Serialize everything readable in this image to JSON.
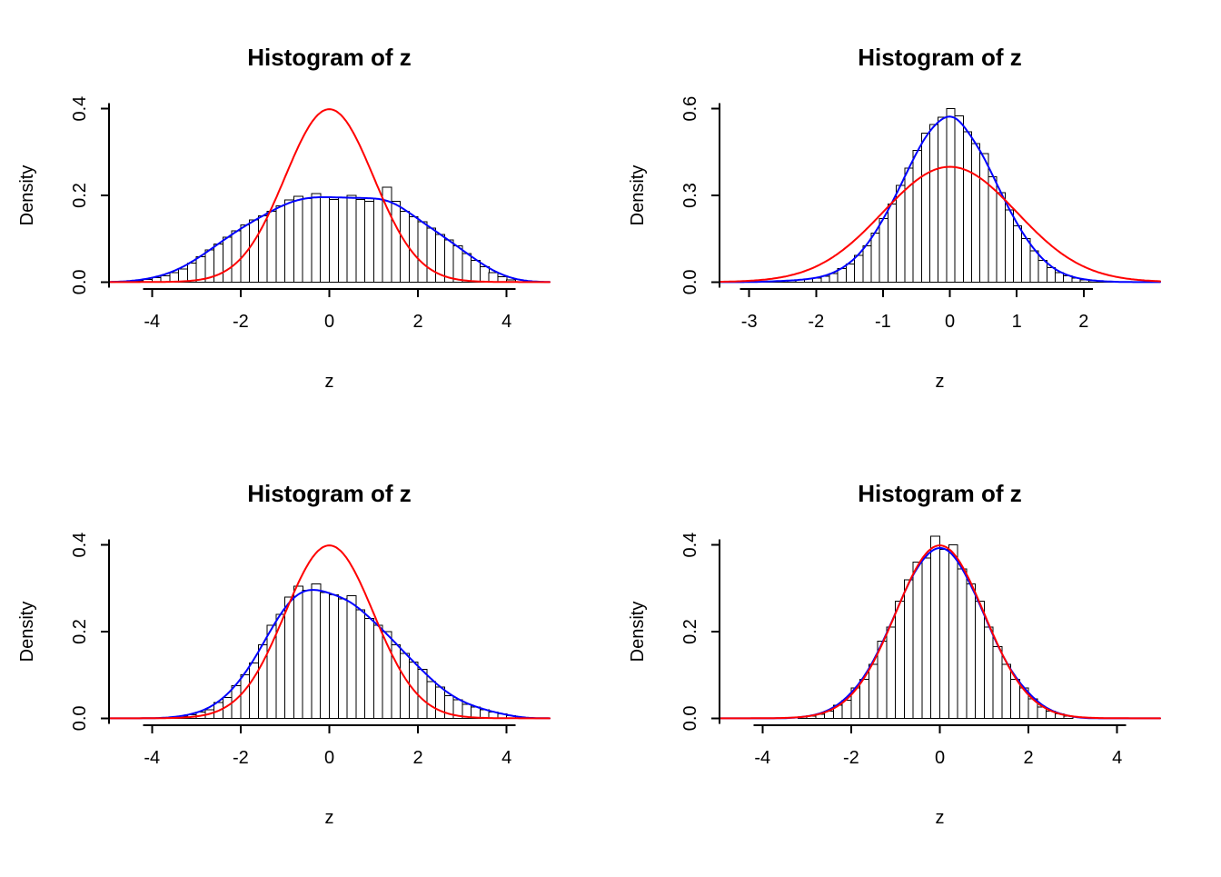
{
  "figure": {
    "background": "#ffffff"
  },
  "chart_data": [
    {
      "id": "top-left",
      "type": "histogram",
      "title": "Histogram of z",
      "xlabel": "z",
      "ylabel": "Density",
      "xlim": [
        -4.6,
        4.6
      ],
      "ylim": [
        0,
        0.4
      ],
      "xticks": [
        -4,
        -2,
        0,
        2,
        4
      ],
      "xtick_labels": [
        "-4",
        "-2",
        "0",
        "2",
        "4"
      ],
      "yticks": [
        0,
        0.2,
        0.4
      ],
      "ytick_labels": [
        "0.0",
        "0.2",
        "0.4"
      ],
      "bins": {
        "start": -4.4,
        "width": 0.2
      },
      "bar_heights": [
        0.003,
        0.006,
        0.01,
        0.014,
        0.022,
        0.03,
        0.044,
        0.058,
        0.074,
        0.088,
        0.104,
        0.118,
        0.132,
        0.143,
        0.153,
        0.163,
        0.176,
        0.19,
        0.198,
        0.193,
        0.204,
        0.196,
        0.191,
        0.196,
        0.2,
        0.191,
        0.186,
        0.192,
        0.219,
        0.186,
        0.163,
        0.151,
        0.139,
        0.124,
        0.11,
        0.097,
        0.084,
        0.066,
        0.05,
        0.035,
        0.022,
        0.012,
        0.005
      ],
      "bar_fill": "#ffffff",
      "bar_stroke": "#000000",
      "curves": [
        {
          "name": "kernel-density",
          "type": "kde",
          "bandwidth": 0.4,
          "color": "#0000ff"
        },
        {
          "name": "standard-normal",
          "type": "normal",
          "mean": 0,
          "sd": 1,
          "color": "#ff0000"
        }
      ]
    },
    {
      "id": "top-right",
      "type": "histogram",
      "title": "Histogram of z",
      "xlabel": "z",
      "ylabel": "Density",
      "xlim": [
        -3.2,
        2.9
      ],
      "ylim": [
        0,
        0.6
      ],
      "xticks": [
        -3,
        -2,
        -1,
        0,
        1,
        2
      ],
      "xtick_labels": [
        "-3",
        "-2",
        "-1",
        "0",
        "1",
        "2"
      ],
      "yticks": [
        0,
        0.3,
        0.6
      ],
      "ytick_labels": [
        "0.0",
        "0.3",
        "0.6"
      ],
      "bins": {
        "start": -2.8,
        "width": 0.125
      },
      "bar_heights": [
        0.002,
        0.003,
        0.004,
        0.005,
        0.008,
        0.01,
        0.014,
        0.02,
        0.03,
        0.046,
        0.063,
        0.092,
        0.125,
        0.17,
        0.22,
        0.27,
        0.335,
        0.395,
        0.455,
        0.515,
        0.545,
        0.57,
        0.6,
        0.575,
        0.52,
        0.48,
        0.445,
        0.365,
        0.31,
        0.25,
        0.195,
        0.15,
        0.108,
        0.075,
        0.05,
        0.032,
        0.022,
        0.013,
        0.008,
        0.005,
        0.003,
        0.002
      ],
      "bar_fill": "#ffffff",
      "bar_stroke": "#000000",
      "curves": [
        {
          "name": "kernel-density",
          "type": "kde",
          "bandwidth": 0.15,
          "color": "#0000ff"
        },
        {
          "name": "standard-normal",
          "type": "normal",
          "mean": 0,
          "sd": 1,
          "color": "#ff0000"
        }
      ]
    },
    {
      "id": "bottom-left",
      "type": "histogram",
      "title": "Histogram of z",
      "xlabel": "z",
      "ylabel": "Density",
      "xlim": [
        -4.6,
        4.6
      ],
      "ylim": [
        0,
        0.4
      ],
      "xticks": [
        -4,
        -2,
        0,
        2,
        4
      ],
      "xtick_labels": [
        "-4",
        "-2",
        "0",
        "2",
        "4"
      ],
      "yticks": [
        0,
        0.2,
        0.4
      ],
      "ytick_labels": [
        "0.0",
        "0.2",
        "0.4"
      ],
      "bins": {
        "start": -3.6,
        "width": 0.2
      },
      "bar_heights": [
        0.002,
        0.005,
        0.008,
        0.014,
        0.02,
        0.036,
        0.048,
        0.075,
        0.1,
        0.128,
        0.17,
        0.215,
        0.24,
        0.28,
        0.305,
        0.295,
        0.31,
        0.29,
        0.285,
        0.275,
        0.283,
        0.25,
        0.23,
        0.215,
        0.2,
        0.17,
        0.15,
        0.13,
        0.113,
        0.085,
        0.072,
        0.052,
        0.043,
        0.032,
        0.026,
        0.02,
        0.014,
        0.01,
        0.006
      ],
      "bar_fill": "#ffffff",
      "bar_stroke": "#000000",
      "curves": [
        {
          "name": "kernel-density",
          "type": "kde",
          "bandwidth": 0.3,
          "color": "#0000ff"
        },
        {
          "name": "standard-normal",
          "type": "normal",
          "mean": 0,
          "sd": 1,
          "color": "#ff0000"
        }
      ]
    },
    {
      "id": "bottom-right",
      "type": "histogram",
      "title": "Histogram of z",
      "xlabel": "z",
      "ylabel": "Density",
      "xlim": [
        -4.6,
        4.6
      ],
      "ylim": [
        0,
        0.4
      ],
      "xticks": [
        -4,
        -2,
        0,
        2,
        4
      ],
      "xtick_labels": [
        "-4",
        "-2",
        "0",
        "2",
        "4"
      ],
      "yticks": [
        0,
        0.2,
        0.4
      ],
      "ytick_labels": [
        "0.0",
        "0.2",
        "0.4"
      ],
      "bins": {
        "start": -3.2,
        "width": 0.2
      },
      "bar_heights": [
        0.003,
        0.005,
        0.009,
        0.016,
        0.03,
        0.042,
        0.07,
        0.09,
        0.125,
        0.178,
        0.21,
        0.27,
        0.32,
        0.36,
        0.37,
        0.42,
        0.39,
        0.4,
        0.345,
        0.31,
        0.27,
        0.21,
        0.165,
        0.125,
        0.09,
        0.07,
        0.045,
        0.026,
        0.016,
        0.01,
        0.005
      ],
      "bar_fill": "#ffffff",
      "bar_stroke": "#000000",
      "curves": [
        {
          "name": "kernel-density",
          "type": "kde",
          "bandwidth": 0.25,
          "color": "#0000ff"
        },
        {
          "name": "standard-normal",
          "type": "normal",
          "mean": 0,
          "sd": 1,
          "color": "#ff0000"
        }
      ]
    }
  ]
}
